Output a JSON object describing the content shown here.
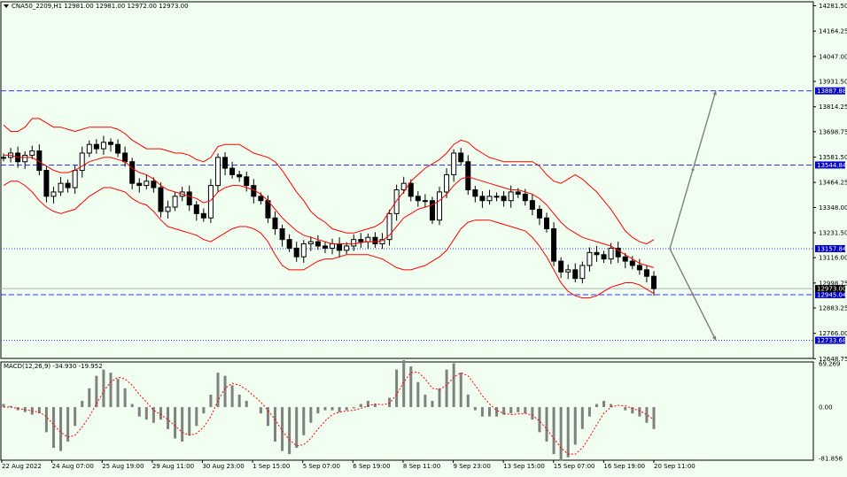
{
  "header": {
    "symbol_line": "CNA50_2209,H1  12981.00 12981.00 12972.00 12973.00"
  },
  "macd": {
    "label": "MACD(12,26,9) -34.930 -19.952",
    "ticks": [
      "69.269",
      "0.00",
      "-81.856"
    ],
    "range": [
      -81.856,
      69.269
    ]
  },
  "colors": {
    "background": "#f0fff0",
    "candles": "#000000",
    "bollinger": "#ff0000",
    "resistance_line": "#3333ff",
    "arrows": "#808080",
    "histogram": "#808080",
    "signal": "#ff0000",
    "label_box": "#0000cc"
  },
  "chart_data": [
    {
      "type": "candlestick",
      "instrument": "CNA50_2209",
      "timeframe": "H1",
      "last": {
        "open": 12981.0,
        "high": 12981.0,
        "low": 12972.0,
        "close": 12973.0
      },
      "ylim": [
        12650,
        14300
      ],
      "y_ticks": [
        "14281.50",
        "14164.25",
        "14047.00",
        "13931.50",
        "13814.25",
        "13698.75",
        "13581.50",
        "13464.25",
        "13348.00",
        "13231.50",
        "13116.00",
        "12998.75",
        "12883.25",
        "12766.00",
        "12648.75"
      ],
      "x_ticks": [
        "22 Aug 2022",
        "24 Aug 07:00",
        "25 Aug 19:00",
        "29 Aug 11:00",
        "30 Aug 23:00",
        "1 Sep 15:00",
        "5 Sep 07:00",
        "6 Sep 19:00",
        "8 Sep 11:00",
        "9 Sep 23:00",
        "13 Sep 15:00",
        "15 Sep 07:00",
        "16 Sep 19:00",
        "20 Sep 11:00"
      ],
      "close_path": [
        13580,
        13600,
        13560,
        13590,
        13610,
        13520,
        13400,
        13420,
        13460,
        13440,
        13520,
        13600,
        13640,
        13620,
        13650,
        13640,
        13600,
        13560,
        13460,
        13450,
        13470,
        13440,
        13330,
        13350,
        13400,
        13420,
        13360,
        13320,
        13300,
        13450,
        13580,
        13530,
        13500,
        13490,
        13450,
        13400,
        13380,
        13300,
        13250,
        13200,
        13160,
        13120,
        13180,
        13190,
        13170,
        13160,
        13180,
        13150,
        13170,
        13200,
        13190,
        13210,
        13180,
        13200,
        13320,
        13430,
        13460,
        13400,
        13380,
        13380,
        13290,
        13420,
        13500,
        13600,
        13560,
        13430,
        13400,
        13380,
        13400,
        13400,
        13380,
        13420,
        13410,
        13380,
        13340,
        13300,
        13250,
        13100,
        13050,
        13060,
        13020,
        13080,
        13140,
        13130,
        13110,
        13160,
        13120,
        13100,
        13080,
        13060,
        13030,
        12973
      ],
      "bollinger": {
        "upper": [
          13730,
          13700,
          13700,
          13720,
          13760,
          13760,
          13740,
          13720,
          13720,
          13710,
          13700,
          13710,
          13720,
          13720,
          13720,
          13720,
          13710,
          13690,
          13660,
          13640,
          13620,
          13620,
          13620,
          13610,
          13600,
          13600,
          13590,
          13570,
          13560,
          13580,
          13630,
          13640,
          13640,
          13640,
          13620,
          13600,
          13590,
          13580,
          13560,
          13520,
          13470,
          13420,
          13380,
          13330,
          13300,
          13280,
          13250,
          13240,
          13230,
          13230,
          13240,
          13250,
          13260,
          13280,
          13330,
          13380,
          13420,
          13470,
          13500,
          13530,
          13550,
          13570,
          13600,
          13640,
          13660,
          13650,
          13620,
          13600,
          13580,
          13570,
          13560,
          13560,
          13560,
          13560,
          13560,
          13540,
          13500,
          13470,
          13460,
          13480,
          13500,
          13480,
          13450,
          13420,
          13380,
          13340,
          13290,
          13240,
          13210,
          13190,
          13180,
          13200
        ],
        "middle": [
          13590,
          13590,
          13580,
          13580,
          13580,
          13560,
          13540,
          13520,
          13510,
          13510,
          13520,
          13540,
          13560,
          13570,
          13580,
          13580,
          13570,
          13560,
          13530,
          13510,
          13500,
          13480,
          13450,
          13430,
          13420,
          13410,
          13400,
          13390,
          13370,
          13380,
          13420,
          13440,
          13450,
          13450,
          13440,
          13430,
          13410,
          13380,
          13340,
          13300,
          13270,
          13240,
          13220,
          13210,
          13200,
          13190,
          13180,
          13180,
          13180,
          13180,
          13185,
          13190,
          13190,
          13195,
          13220,
          13260,
          13300,
          13320,
          13340,
          13350,
          13360,
          13380,
          13410,
          13450,
          13480,
          13490,
          13480,
          13470,
          13460,
          13450,
          13440,
          13430,
          13430,
          13420,
          13410,
          13390,
          13360,
          13320,
          13280,
          13250,
          13230,
          13210,
          13200,
          13190,
          13180,
          13170,
          13150,
          13130,
          13110,
          13090,
          13080,
          13070
        ],
        "lower": [
          13450,
          13470,
          13470,
          13450,
          13420,
          13380,
          13350,
          13330,
          13320,
          13330,
          13340,
          13370,
          13400,
          13420,
          13440,
          13440,
          13430,
          13420,
          13390,
          13370,
          13360,
          13330,
          13290,
          13260,
          13250,
          13240,
          13230,
          13220,
          13200,
          13190,
          13210,
          13230,
          13250,
          13260,
          13260,
          13250,
          13230,
          13190,
          13130,
          13080,
          13060,
          13060,
          13060,
          13080,
          13100,
          13110,
          13110,
          13120,
          13130,
          13130,
          13130,
          13130,
          13120,
          13110,
          13090,
          13070,
          13060,
          13060,
          13070,
          13080,
          13100,
          13120,
          13150,
          13200,
          13250,
          13280,
          13290,
          13290,
          13290,
          13280,
          13270,
          13260,
          13250,
          13240,
          13210,
          13170,
          13120,
          13060,
          13000,
          12960,
          12940,
          12930,
          12930,
          12940,
          12960,
          12980,
          12990,
          13000,
          13000,
          12990,
          12970,
          12950
        ]
      },
      "horizontal_levels": [
        {
          "value": 13887.88,
          "label": "13887.88",
          "style": "dashed"
        },
        {
          "value": 13544.84,
          "label": "13544.84",
          "style": "dashed"
        },
        {
          "value": 13157.84,
          "label": "13157.84",
          "style": "dotted"
        },
        {
          "value": 12945.04,
          "label": "12945.04",
          "style": "dashed"
        },
        {
          "value": 12733.68,
          "label": "12733.68",
          "style": "dotted"
        }
      ],
      "current_price": {
        "value": 12973.0,
        "label": "12973.00"
      },
      "projections": [
        {
          "from": 13157.84,
          "to": 13887.88
        },
        {
          "from": 13157.84,
          "to": 12733.68
        }
      ]
    },
    {
      "type": "bar",
      "indicator": "MACD(12,26,9)",
      "macd": -34.93,
      "signal": -19.952,
      "ylim": [
        -81.856,
        69.269
      ],
      "histogram": [
        5,
        2,
        -5,
        -8,
        -12,
        -10,
        -40,
        -65,
        -70,
        -55,
        -30,
        10,
        30,
        50,
        60,
        55,
        45,
        30,
        5,
        -15,
        -20,
        -25,
        -20,
        -35,
        -50,
        -55,
        -45,
        -30,
        -10,
        20,
        55,
        50,
        35,
        20,
        10,
        0,
        -10,
        -30,
        -55,
        -70,
        -75,
        -65,
        -45,
        -25,
        -10,
        -5,
        -5,
        -8,
        -5,
        -2,
        5,
        10,
        5,
        0,
        15,
        60,
        75,
        65,
        40,
        20,
        10,
        30,
        60,
        70,
        55,
        20,
        -5,
        -15,
        -15,
        -15,
        -12,
        -10,
        -8,
        -10,
        -20,
        -40,
        -55,
        -75,
        -85,
        -80,
        -60,
        -35,
        -15,
        5,
        10,
        5,
        0,
        -5,
        -10,
        -15,
        -25,
        -35
      ],
      "signal_line": [
        0,
        0,
        -2,
        -4,
        -6,
        -8,
        -15,
        -28,
        -40,
        -48,
        -45,
        -32,
        -15,
        5,
        25,
        40,
        48,
        45,
        35,
        20,
        8,
        -5,
        -12,
        -20,
        -30,
        -40,
        -45,
        -42,
        -32,
        -15,
        10,
        30,
        38,
        35,
        28,
        18,
        8,
        -5,
        -20,
        -38,
        -52,
        -62,
        -60,
        -50,
        -35,
        -22,
        -12,
        -8,
        -6,
        -5,
        -2,
        2,
        5,
        4,
        6,
        20,
        40,
        55,
        56,
        45,
        30,
        28,
        35,
        48,
        55,
        50,
        35,
        18,
        5,
        -5,
        -10,
        -12,
        -11,
        -10,
        -13,
        -22,
        -35,
        -50,
        -65,
        -75,
        -75,
        -65,
        -48,
        -28,
        -10,
        0,
        3,
        2,
        -2,
        -6,
        -12,
        -20
      ]
    }
  ]
}
